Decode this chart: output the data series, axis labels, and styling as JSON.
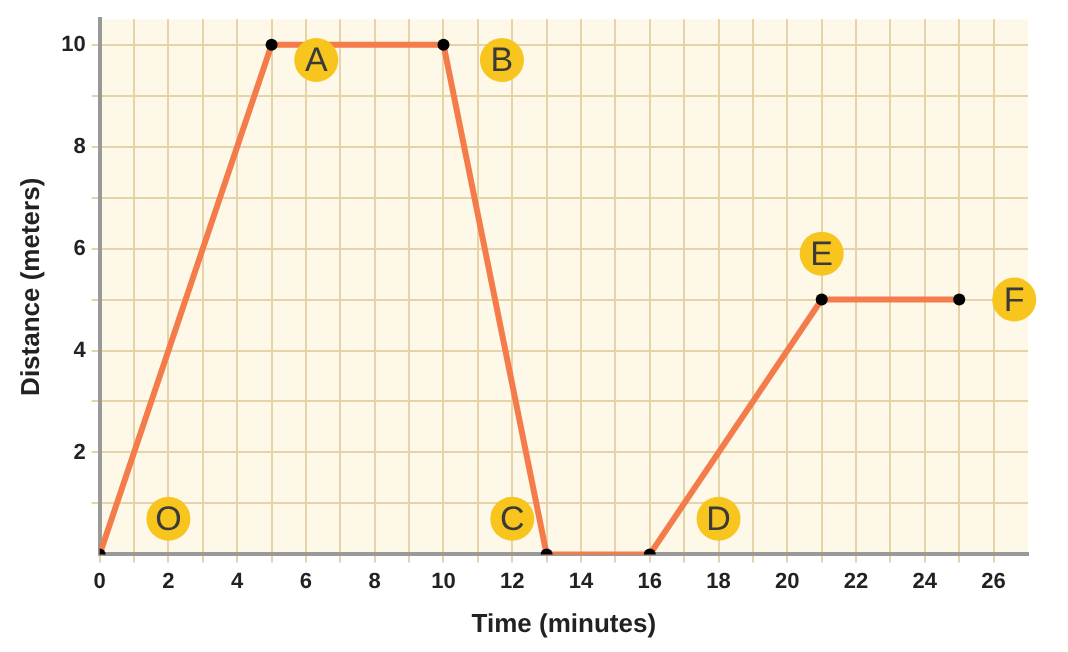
{
  "chart_data": {
    "type": "line",
    "xlabel": "Time (minutes)",
    "ylabel": "Distance (meters)",
    "x": [
      0,
      5,
      10,
      13,
      16,
      21,
      25
    ],
    "series": [
      {
        "color": "#f47c4a",
        "values": [
          0,
          10,
          10,
          0,
          0,
          5,
          5
        ]
      }
    ],
    "xlim": [
      0,
      27
    ],
    "ylim": [
      0,
      10.5
    ],
    "xticks": [
      0,
      {
        "value": 1,
        "label": null
      },
      2,
      {
        "value": 3,
        "label": null
      },
      4,
      {
        "value": 5,
        "label": null
      },
      6,
      {
        "value": 7,
        "label": null
      },
      8,
      {
        "value": 9,
        "label": null
      },
      10,
      {
        "value": 11,
        "label": null
      },
      12,
      {
        "value": 13,
        "label": null
      },
      14,
      {
        "value": 15,
        "label": null
      },
      16,
      {
        "value": 17,
        "label": null
      },
      18,
      {
        "value": 19,
        "label": null
      },
      20,
      {
        "value": 21,
        "label": null
      },
      22,
      {
        "value": 23,
        "label": null
      },
      24,
      {
        "value": 25,
        "label": null
      },
      26
    ],
    "yticks": [
      {
        "value": 1,
        "label": null
      },
      2,
      {
        "value": 3,
        "label": null
      },
      4,
      {
        "value": 5,
        "label": null
      },
      6,
      {
        "value": 7,
        "label": null
      },
      8,
      {
        "value": 9,
        "label": null
      },
      10
    ],
    "grid": true,
    "marker": "circle",
    "line_style": "solid",
    "legend": false,
    "annotations": [
      {
        "text": "O",
        "x": 2,
        "y": 0.7
      },
      {
        "text": "A",
        "x": 6.3,
        "y": 9.7
      },
      {
        "text": "B",
        "x": 11.7,
        "y": 9.7
      },
      {
        "text": "C",
        "x": 12,
        "y": 0.7
      },
      {
        "text": "D",
        "x": 18,
        "y": 0.7
      },
      {
        "text": "E",
        "x": 21,
        "y": 5.9
      },
      {
        "text": "F",
        "x": 26.6,
        "y": 5
      }
    ]
  }
}
